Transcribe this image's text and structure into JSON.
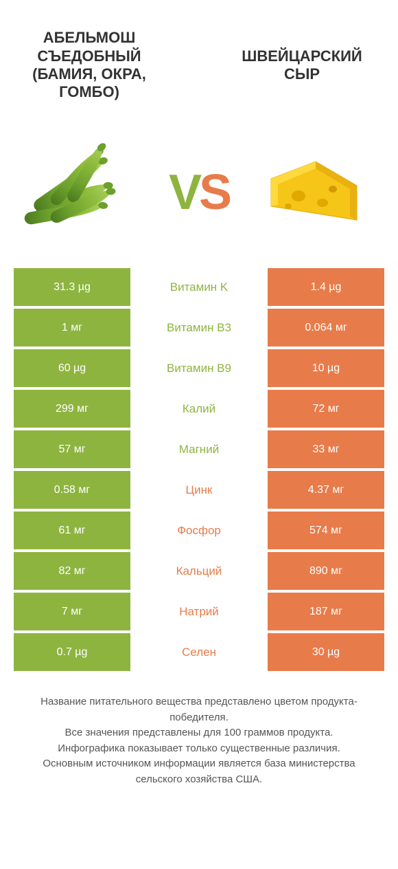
{
  "colors": {
    "green": "#8eb440",
    "orange": "#e87b4a",
    "white": "#ffffff",
    "text": "#333333"
  },
  "header": {
    "left_title": "АБЕЛЬМОШ СЪЕДОБНЫЙ (БАМИЯ, ОКРА, ГОМБО)",
    "right_title": "ШВЕЙЦАРСКИЙ СЫР",
    "vs_v": "V",
    "vs_s": "S"
  },
  "rows": [
    {
      "name": "Витамин K",
      "left": "31.3 µg",
      "right": "1.4 µg",
      "winner": "left"
    },
    {
      "name": "Витамин B3",
      "left": "1 мг",
      "right": "0.064 мг",
      "winner": "left"
    },
    {
      "name": "Витамин B9",
      "left": "60 µg",
      "right": "10 µg",
      "winner": "left"
    },
    {
      "name": "Калий",
      "left": "299 мг",
      "right": "72 мг",
      "winner": "left"
    },
    {
      "name": "Магний",
      "left": "57 мг",
      "right": "33 мг",
      "winner": "left"
    },
    {
      "name": "Цинк",
      "left": "0.58 мг",
      "right": "4.37 мг",
      "winner": "right"
    },
    {
      "name": "Фосфор",
      "left": "61 мг",
      "right": "574 мг",
      "winner": "right"
    },
    {
      "name": "Кальций",
      "left": "82 мг",
      "right": "890 мг",
      "winner": "right"
    },
    {
      "name": "Натрий",
      "left": "7 мг",
      "right": "187 мг",
      "winner": "right"
    },
    {
      "name": "Селен",
      "left": "0.7 µg",
      "right": "30 µg",
      "winner": "right"
    }
  ],
  "footer": {
    "line1": "Название питательного вещества представлено цветом продукта-победителя.",
    "line2": "Все значения представлены для 100 граммов продукта.",
    "line3": "Инфографика показывает только существенные различия.",
    "line4": "Основным источником информации является база министерства сельского хозяйства США."
  }
}
